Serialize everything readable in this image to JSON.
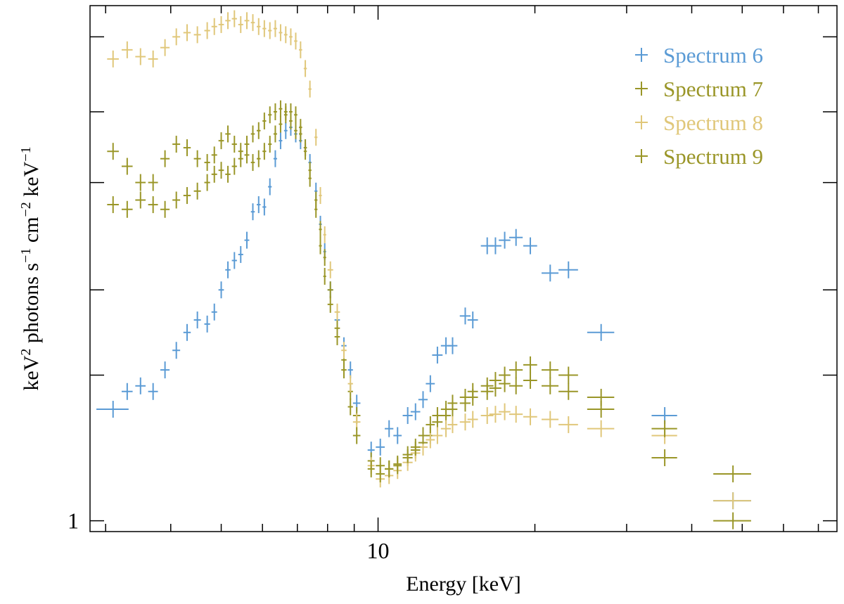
{
  "chart_data": {
    "type": "scatter",
    "xlabel": "Energy [keV]",
    "ylabel_parts": {
      "a": "keV",
      "a_sup": "2",
      "b": " photons s",
      "b_sup": "−1",
      "c": " cm",
      "c_sup": "−2",
      "d": " keV",
      "d_sup": "−1"
    },
    "x_scale": "log",
    "y_scale": "log",
    "xlim": [
      2.8,
      76
    ],
    "ylim": [
      0.95,
      11.6
    ],
    "x_tick_labels": [
      {
        "value": 10,
        "label": "10"
      }
    ],
    "y_tick_labels": [
      {
        "value": 1,
        "label": "1"
      }
    ],
    "x_minor_ticks": [
      3,
      4,
      5,
      6,
      7,
      8,
      9,
      20,
      30,
      40,
      50,
      60,
      70
    ],
    "y_major_ticks": [
      1,
      2,
      3,
      5,
      7,
      10
    ],
    "grid": false,
    "legend_position": "top-right",
    "series": [
      {
        "name": "Spectrum 6",
        "color": "#5b9bd5",
        "points": [
          [
            3.1,
            0.22,
            1.7
          ],
          [
            3.3,
            0.08,
            1.85
          ],
          [
            3.5,
            0.08,
            1.9
          ],
          [
            3.7,
            0.08,
            1.85
          ],
          [
            3.9,
            0.08,
            2.05
          ],
          [
            4.1,
            0.07,
            2.25
          ],
          [
            4.3,
            0.07,
            2.45
          ],
          [
            4.5,
            0.07,
            2.6
          ],
          [
            4.7,
            0.06,
            2.55
          ],
          [
            4.85,
            0.06,
            2.7
          ],
          [
            5.0,
            0.06,
            3.0
          ],
          [
            5.15,
            0.06,
            3.3
          ],
          [
            5.3,
            0.06,
            3.45
          ],
          [
            5.45,
            0.06,
            3.55
          ],
          [
            5.6,
            0.06,
            3.8
          ],
          [
            5.75,
            0.05,
            4.35
          ],
          [
            5.9,
            0.05,
            4.5
          ],
          [
            6.05,
            0.05,
            4.45
          ],
          [
            6.2,
            0.05,
            4.9
          ],
          [
            6.35,
            0.05,
            5.6
          ],
          [
            6.5,
            0.05,
            6.1
          ],
          [
            6.65,
            0.05,
            6.4
          ],
          [
            6.8,
            0.05,
            6.5
          ],
          [
            6.95,
            0.05,
            6.3
          ],
          [
            7.1,
            0.05,
            6.1
          ],
          [
            7.25,
            0.05,
            5.9
          ],
          [
            7.4,
            0.05,
            5.5
          ],
          [
            7.6,
            0.05,
            4.8
          ],
          [
            7.75,
            0.05,
            4.1
          ],
          [
            7.9,
            0.05,
            3.6
          ],
          [
            8.1,
            0.1,
            3.0
          ],
          [
            8.35,
            0.1,
            2.6
          ],
          [
            8.6,
            0.1,
            2.3
          ],
          [
            8.85,
            0.1,
            2.05
          ],
          [
            9.1,
            0.15,
            1.75
          ],
          [
            9.7,
            0.15,
            1.4
          ],
          [
            10.1,
            0.2,
            1.42
          ],
          [
            10.5,
            0.2,
            1.55
          ],
          [
            10.9,
            0.2,
            1.5
          ],
          [
            11.4,
            0.25,
            1.65
          ],
          [
            11.8,
            0.25,
            1.68
          ],
          [
            12.2,
            0.25,
            1.78
          ],
          [
            12.6,
            0.25,
            1.92
          ],
          [
            13.0,
            0.3,
            2.2
          ],
          [
            13.5,
            0.3,
            2.3
          ],
          [
            13.9,
            0.3,
            2.3
          ],
          [
            14.7,
            0.35,
            2.65
          ],
          [
            15.2,
            0.35,
            2.6
          ],
          [
            16.2,
            0.45,
            3.7
          ],
          [
            16.8,
            0.45,
            3.7
          ],
          [
            17.5,
            0.45,
            3.8
          ],
          [
            18.4,
            0.55,
            3.85
          ],
          [
            19.6,
            0.6,
            3.7
          ],
          [
            21.4,
            0.8,
            3.25
          ],
          [
            23.2,
            1.0,
            3.3
          ],
          [
            26.8,
            1.6,
            2.45
          ],
          [
            35.5,
            2.0,
            1.65
          ],
          [
            48.0,
            4.0,
            1.1
          ]
        ]
      },
      {
        "name": "Spectrum 7",
        "color": "#9a9628",
        "points": [
          [
            3.1,
            0.08,
            5.8
          ],
          [
            3.3,
            0.08,
            5.4
          ],
          [
            3.5,
            0.08,
            5.0
          ],
          [
            3.7,
            0.08,
            5.0
          ],
          [
            3.9,
            0.08,
            5.6
          ],
          [
            4.1,
            0.07,
            6.0
          ],
          [
            4.3,
            0.07,
            5.9
          ],
          [
            4.5,
            0.07,
            5.6
          ],
          [
            4.7,
            0.06,
            5.5
          ],
          [
            4.85,
            0.06,
            5.7
          ],
          [
            5.0,
            0.06,
            6.1
          ],
          [
            5.15,
            0.06,
            6.3
          ],
          [
            5.3,
            0.06,
            6.0
          ],
          [
            5.45,
            0.06,
            5.8
          ],
          [
            5.6,
            0.06,
            6.0
          ],
          [
            5.75,
            0.05,
            6.3
          ],
          [
            5.9,
            0.05,
            6.4
          ],
          [
            6.05,
            0.05,
            6.7
          ],
          [
            6.2,
            0.05,
            6.9
          ],
          [
            6.35,
            0.05,
            7.0
          ],
          [
            6.5,
            0.05,
            7.1
          ],
          [
            6.65,
            0.05,
            7.0
          ],
          [
            6.8,
            0.05,
            6.7
          ],
          [
            6.95,
            0.05,
            6.4
          ],
          [
            7.1,
            0.05,
            6.3
          ],
          [
            7.25,
            0.05,
            5.8
          ],
          [
            7.4,
            0.05,
            5.3
          ],
          [
            7.6,
            0.05,
            4.6
          ],
          [
            7.75,
            0.05,
            4.0
          ],
          [
            7.9,
            0.05,
            3.5
          ],
          [
            8.1,
            0.1,
            3.0
          ],
          [
            8.35,
            0.1,
            2.5
          ],
          [
            8.6,
            0.1,
            2.15
          ],
          [
            8.85,
            0.1,
            1.85
          ],
          [
            9.1,
            0.15,
            1.65
          ],
          [
            9.7,
            0.15,
            1.33
          ],
          [
            10.1,
            0.2,
            1.3
          ],
          [
            10.5,
            0.2,
            1.28
          ],
          [
            10.9,
            0.2,
            1.31
          ],
          [
            11.4,
            0.25,
            1.35
          ],
          [
            11.8,
            0.25,
            1.4
          ],
          [
            12.2,
            0.25,
            1.45
          ],
          [
            12.6,
            0.25,
            1.5
          ],
          [
            13.0,
            0.3,
            1.6
          ],
          [
            13.5,
            0.3,
            1.65
          ],
          [
            13.9,
            0.3,
            1.7
          ],
          [
            14.7,
            0.35,
            1.75
          ],
          [
            15.2,
            0.35,
            1.8
          ],
          [
            16.2,
            0.45,
            1.85
          ],
          [
            16.8,
            0.45,
            1.88
          ],
          [
            17.5,
            0.45,
            1.92
          ],
          [
            18.4,
            0.55,
            1.9
          ],
          [
            19.6,
            0.6,
            1.95
          ],
          [
            21.4,
            0.8,
            1.9
          ],
          [
            23.2,
            1.0,
            1.85
          ],
          [
            26.8,
            1.6,
            1.8
          ],
          [
            35.5,
            2.0,
            1.35
          ],
          [
            48.0,
            4.0,
            1.25
          ]
        ]
      },
      {
        "name": "Spectrum 8",
        "color": "#e0c77a",
        "points": [
          [
            3.1,
            0.08,
            9.0
          ],
          [
            3.3,
            0.08,
            9.4
          ],
          [
            3.5,
            0.08,
            9.1
          ],
          [
            3.7,
            0.08,
            9.0
          ],
          [
            3.9,
            0.08,
            9.5
          ],
          [
            4.1,
            0.07,
            10.0
          ],
          [
            4.3,
            0.07,
            10.2
          ],
          [
            4.5,
            0.07,
            10.1
          ],
          [
            4.7,
            0.06,
            10.3
          ],
          [
            4.85,
            0.06,
            10.5
          ],
          [
            5.0,
            0.06,
            10.6
          ],
          [
            5.15,
            0.06,
            10.8
          ],
          [
            5.3,
            0.06,
            10.9
          ],
          [
            5.45,
            0.06,
            10.6
          ],
          [
            5.6,
            0.06,
            10.8
          ],
          [
            5.75,
            0.05,
            10.7
          ],
          [
            5.9,
            0.05,
            10.5
          ],
          [
            6.05,
            0.05,
            10.4
          ],
          [
            6.2,
            0.05,
            10.3
          ],
          [
            6.35,
            0.05,
            10.4
          ],
          [
            6.5,
            0.05,
            10.2
          ],
          [
            6.65,
            0.05,
            10.1
          ],
          [
            6.8,
            0.05,
            10.0
          ],
          [
            6.95,
            0.05,
            9.8
          ],
          [
            7.1,
            0.05,
            9.4
          ],
          [
            7.25,
            0.05,
            8.6
          ],
          [
            7.4,
            0.05,
            7.8
          ],
          [
            7.6,
            0.05,
            6.2
          ],
          [
            7.75,
            0.05,
            4.7
          ],
          [
            7.9,
            0.05,
            3.9
          ],
          [
            8.1,
            0.1,
            3.3
          ],
          [
            8.35,
            0.1,
            2.7
          ],
          [
            8.6,
            0.1,
            2.25
          ],
          [
            8.85,
            0.1,
            1.92
          ],
          [
            9.1,
            0.15,
            1.6
          ],
          [
            9.7,
            0.15,
            1.3
          ],
          [
            10.1,
            0.2,
            1.22
          ],
          [
            10.5,
            0.2,
            1.24
          ],
          [
            10.9,
            0.2,
            1.27
          ],
          [
            11.4,
            0.25,
            1.32
          ],
          [
            11.8,
            0.25,
            1.38
          ],
          [
            12.2,
            0.25,
            1.42
          ],
          [
            12.6,
            0.25,
            1.47
          ],
          [
            13.0,
            0.3,
            1.5
          ],
          [
            13.5,
            0.3,
            1.55
          ],
          [
            13.9,
            0.3,
            1.58
          ],
          [
            14.7,
            0.35,
            1.6
          ],
          [
            15.2,
            0.35,
            1.62
          ],
          [
            16.2,
            0.45,
            1.65
          ],
          [
            16.8,
            0.45,
            1.66
          ],
          [
            17.5,
            0.45,
            1.68
          ],
          [
            18.4,
            0.55,
            1.66
          ],
          [
            19.6,
            0.6,
            1.64
          ],
          [
            21.4,
            0.8,
            1.62
          ],
          [
            23.2,
            1.0,
            1.58
          ],
          [
            26.8,
            1.6,
            1.55
          ],
          [
            35.5,
            2.0,
            1.5
          ],
          [
            48.0,
            4.0,
            1.1
          ]
        ]
      },
      {
        "name": "Spectrum 9",
        "color": "#9a9628",
        "points": [
          [
            3.1,
            0.08,
            4.5
          ],
          [
            3.3,
            0.08,
            4.4
          ],
          [
            3.5,
            0.08,
            4.6
          ],
          [
            3.7,
            0.08,
            4.5
          ],
          [
            3.9,
            0.08,
            4.4
          ],
          [
            4.1,
            0.07,
            4.6
          ],
          [
            4.3,
            0.07,
            4.7
          ],
          [
            4.5,
            0.07,
            4.8
          ],
          [
            4.7,
            0.06,
            5.0
          ],
          [
            4.85,
            0.06,
            5.2
          ],
          [
            5.0,
            0.06,
            5.3
          ],
          [
            5.15,
            0.06,
            5.2
          ],
          [
            5.3,
            0.06,
            5.4
          ],
          [
            5.45,
            0.06,
            5.6
          ],
          [
            5.6,
            0.06,
            5.7
          ],
          [
            5.75,
            0.05,
            5.5
          ],
          [
            5.9,
            0.05,
            5.6
          ],
          [
            6.05,
            0.05,
            5.8
          ],
          [
            6.2,
            0.05,
            6.0
          ],
          [
            6.35,
            0.05,
            6.3
          ],
          [
            6.5,
            0.05,
            6.6
          ],
          [
            6.65,
            0.05,
            6.9
          ],
          [
            6.8,
            0.05,
            7.0
          ],
          [
            6.95,
            0.05,
            6.9
          ],
          [
            7.1,
            0.05,
            6.5
          ],
          [
            7.25,
            0.05,
            5.9
          ],
          [
            7.4,
            0.05,
            5.1
          ],
          [
            7.6,
            0.05,
            4.4
          ],
          [
            7.75,
            0.05,
            3.7
          ],
          [
            7.9,
            0.05,
            3.2
          ],
          [
            8.1,
            0.1,
            2.8
          ],
          [
            8.35,
            0.1,
            2.4
          ],
          [
            8.6,
            0.1,
            2.05
          ],
          [
            8.85,
            0.1,
            1.72
          ],
          [
            9.1,
            0.15,
            1.5
          ],
          [
            9.7,
            0.15,
            1.28
          ],
          [
            10.1,
            0.2,
            1.25
          ],
          [
            10.5,
            0.2,
            1.28
          ],
          [
            10.9,
            0.2,
            1.3
          ],
          [
            11.4,
            0.25,
            1.37
          ],
          [
            11.8,
            0.25,
            1.42
          ],
          [
            12.2,
            0.25,
            1.5
          ],
          [
            12.6,
            0.25,
            1.58
          ],
          [
            13.0,
            0.3,
            1.65
          ],
          [
            13.5,
            0.3,
            1.7
          ],
          [
            13.9,
            0.3,
            1.75
          ],
          [
            14.7,
            0.35,
            1.8
          ],
          [
            15.2,
            0.35,
            1.85
          ],
          [
            16.2,
            0.45,
            1.9
          ],
          [
            16.8,
            0.45,
            1.95
          ],
          [
            17.5,
            0.45,
            2.0
          ],
          [
            18.4,
            0.55,
            2.05
          ],
          [
            19.6,
            0.6,
            2.1
          ],
          [
            21.4,
            0.8,
            2.05
          ],
          [
            23.2,
            1.0,
            2.0
          ],
          [
            26.8,
            1.6,
            1.7
          ],
          [
            35.5,
            2.0,
            1.55
          ],
          [
            48.0,
            4.0,
            1.0
          ]
        ]
      }
    ]
  }
}
